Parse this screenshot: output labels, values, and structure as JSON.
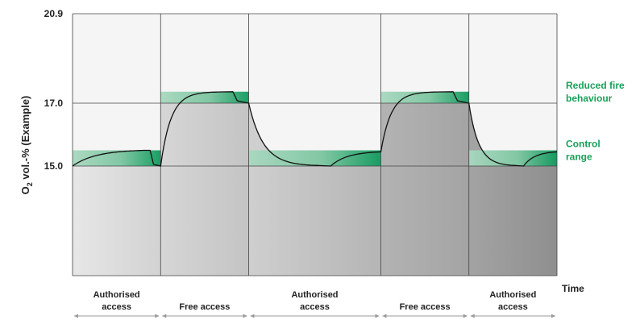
{
  "chart_data": {
    "type": "area",
    "ylabel_main": "O",
    "ylabel_sub": "2",
    "ylabel_rest": " vol.-% (Example)",
    "xlabel": "Time",
    "y_ticks": [
      {
        "value": 20.9,
        "label": "20.9"
      },
      {
        "value": 17.0,
        "label": "17.0"
      },
      {
        "value": 15.0,
        "label": "15.0"
      }
    ],
    "right_labels": [
      {
        "lines": [
          "Reduced fire",
          "behaviour"
        ],
        "value": 17.5
      },
      {
        "lines": [
          "Control",
          "range"
        ],
        "value": 15.5
      }
    ],
    "bands": {
      "control": [
        15.0,
        15.5
      ],
      "reduced": [
        17.0,
        17.5
      ]
    },
    "phases": [
      {
        "label_lines": [
          "Authorised",
          "access"
        ],
        "level": 15.0,
        "start": 0,
        "end": 1.0
      },
      {
        "label_lines": [
          "Free access"
        ],
        "level": 17.0,
        "start": 1.0,
        "end": 2.0
      },
      {
        "label_lines": [
          "Authorised",
          "access"
        ],
        "level": 15.0,
        "start": 2.0,
        "end": 3.5
      },
      {
        "label_lines": [
          "Free access"
        ],
        "level": 17.0,
        "start": 3.5,
        "end": 4.5
      },
      {
        "label_lines": [
          "Authorised",
          "access"
        ],
        "level": 15.0,
        "start": 4.5,
        "end": 5.5
      }
    ],
    "colors": {
      "line": "#111111",
      "grid": "#444444",
      "band": "#2fa36b",
      "band_light": "#a8d8bf",
      "label_green": "#17a05a",
      "arrow": "#9a9a9a"
    }
  }
}
